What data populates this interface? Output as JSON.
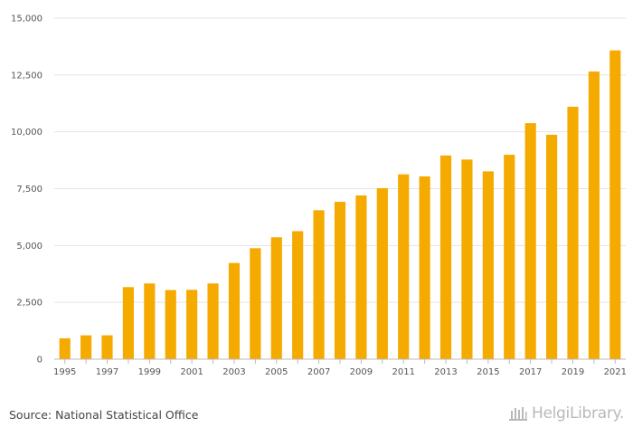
{
  "chart_data": {
    "type": "bar",
    "title": "",
    "xlabel": "",
    "ylabel": "",
    "ylim": [
      0,
      15000
    ],
    "yticks": [
      0,
      2500,
      5000,
      7500,
      10000,
      12500,
      15000
    ],
    "ytick_labels": [
      "0",
      "2,500",
      "5,000",
      "7,500",
      "10,000",
      "12,500",
      "15,000"
    ],
    "categories": [
      "1995",
      "1996",
      "1997",
      "1998",
      "1999",
      "2000",
      "2001",
      "2002",
      "2003",
      "2004",
      "2005",
      "2006",
      "2007",
      "2008",
      "2009",
      "2010",
      "2011",
      "2012",
      "2013",
      "2014",
      "2015",
      "2016",
      "2017",
      "2018",
      "2019",
      "2020",
      "2021"
    ],
    "xtick_labels": [
      "1995",
      "1997",
      "1999",
      "2001",
      "2003",
      "2005",
      "2007",
      "2009",
      "2011",
      "2013",
      "2015",
      "2017",
      "2019",
      "2021"
    ],
    "values": [
      920,
      1050,
      1050,
      3170,
      3330,
      3040,
      3050,
      3330,
      4230,
      4880,
      5360,
      5630,
      6550,
      6920,
      7200,
      7520,
      8130,
      8040,
      8960,
      8780,
      8260,
      8990,
      10380,
      9870,
      11100,
      12650,
      13580
    ],
    "bar_color": "#f5aa00",
    "grid": true
  },
  "footer": {
    "source": "Source: National Statistical Office",
    "brand": "HelgiLibrary."
  }
}
